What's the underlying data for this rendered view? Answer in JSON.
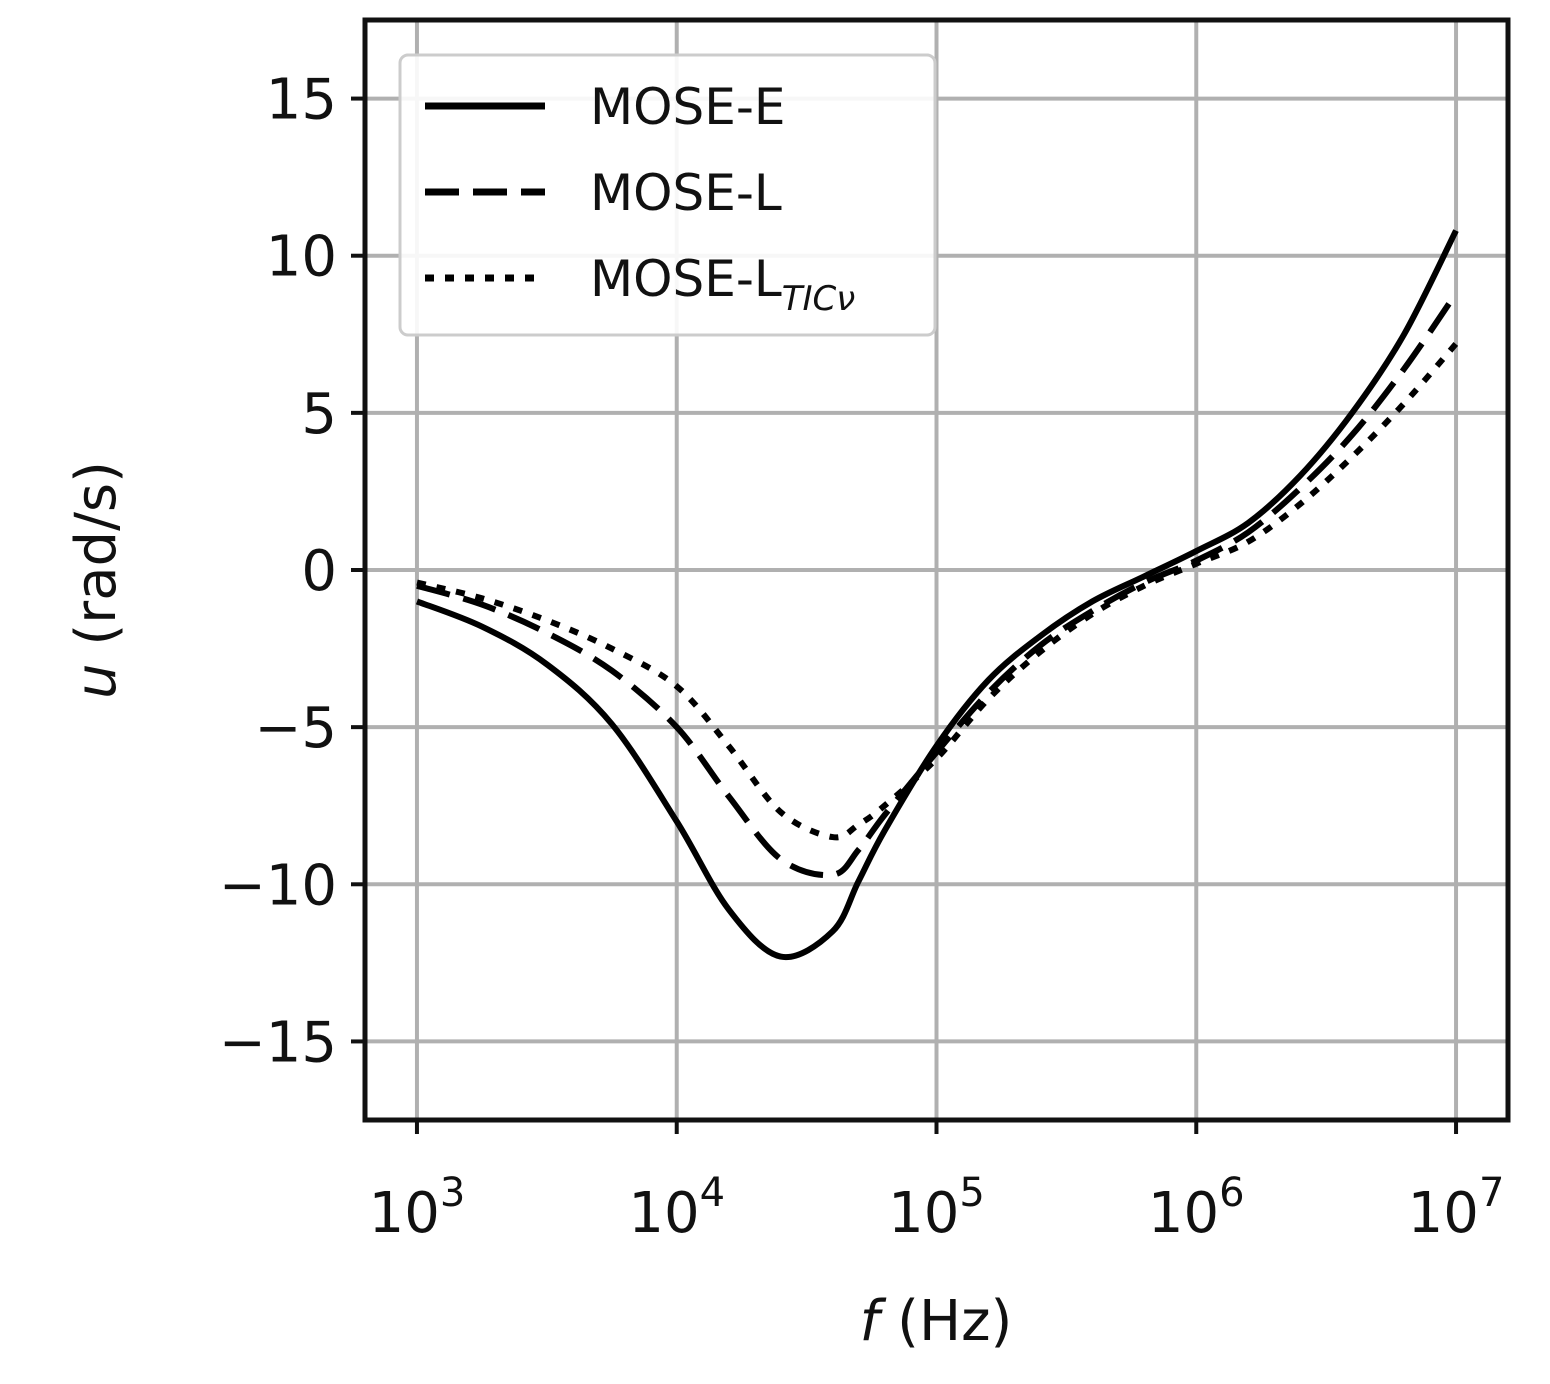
{
  "chart_data": {
    "type": "line",
    "xscale": "log",
    "xlabel": {
      "italic": "f",
      "rest": " (Hz)"
    },
    "ylabel": {
      "italic": "u",
      "rest": " (rad/s)"
    },
    "xlim": [
      1000,
      10000000
    ],
    "ylim": [
      -17.5,
      17.5
    ],
    "grid": true,
    "legend_position": "top-left",
    "x_ticks": [
      {
        "base": "10",
        "exp": "3"
      },
      {
        "base": "10",
        "exp": "4"
      },
      {
        "base": "10",
        "exp": "5"
      },
      {
        "base": "10",
        "exp": "6"
      },
      {
        "base": "10",
        "exp": "7"
      }
    ],
    "x_tick_values": [
      1000,
      10000,
      100000,
      1000000,
      10000000
    ],
    "y_ticks": [
      -15,
      -10,
      -5,
      0,
      5,
      10,
      15
    ],
    "y_tick_labels": [
      "−15",
      "−10",
      "−5",
      "0",
      "5",
      "10",
      "15"
    ],
    "series": [
      {
        "name": "MOSE-E",
        "legend_main": "MOSE-E",
        "legend_sub": "",
        "style": "solid",
        "color": "#000000",
        "log10_f": [
          3.0,
          3.25,
          3.5,
          3.75,
          4.0,
          4.2,
          4.4,
          4.6,
          4.7,
          4.8,
          5.0,
          5.2,
          5.4,
          5.6,
          5.8,
          6.0,
          6.2,
          6.4,
          6.6,
          6.8,
          7.0
        ],
        "values": [
          -1.0,
          -1.8,
          -3.0,
          -4.9,
          -8.0,
          -10.8,
          -12.3,
          -11.5,
          -9.9,
          -8.3,
          -5.6,
          -3.5,
          -2.1,
          -1.0,
          -0.2,
          0.6,
          1.5,
          3.0,
          5.0,
          7.5,
          10.8
        ]
      },
      {
        "name": "MOSE-L",
        "legend_main": "MOSE-L",
        "legend_sub": "",
        "style": "dashed",
        "color": "#000000",
        "log10_f": [
          3.0,
          3.25,
          3.5,
          3.75,
          4.0,
          4.2,
          4.4,
          4.6,
          4.7,
          4.8,
          5.0,
          5.2,
          5.4,
          5.6,
          5.8,
          6.0,
          6.2,
          6.4,
          6.6,
          6.8,
          7.0
        ],
        "values": [
          -0.5,
          -1.1,
          -2.0,
          -3.2,
          -5.0,
          -7.2,
          -9.2,
          -9.7,
          -8.9,
          -7.8,
          -5.8,
          -3.9,
          -2.4,
          -1.3,
          -0.4,
          0.3,
          1.2,
          2.6,
          4.3,
          6.4,
          8.8
        ]
      },
      {
        "name": "MOSE-L_TICν",
        "legend_main": "MOSE-L",
        "legend_sub": "TICν",
        "style": "dotted",
        "color": "#000000",
        "log10_f": [
          3.0,
          3.25,
          3.5,
          3.75,
          4.0,
          4.2,
          4.4,
          4.6,
          4.7,
          4.8,
          5.0,
          5.2,
          5.4,
          5.6,
          5.8,
          6.0,
          6.2,
          6.4,
          6.6,
          6.8,
          7.0
        ],
        "values": [
          -0.4,
          -0.9,
          -1.6,
          -2.5,
          -3.7,
          -5.6,
          -7.7,
          -8.5,
          -8.1,
          -7.5,
          -6.0,
          -4.1,
          -2.6,
          -1.4,
          -0.5,
          0.2,
          0.9,
          2.1,
          3.6,
          5.3,
          7.2
        ]
      }
    ]
  }
}
